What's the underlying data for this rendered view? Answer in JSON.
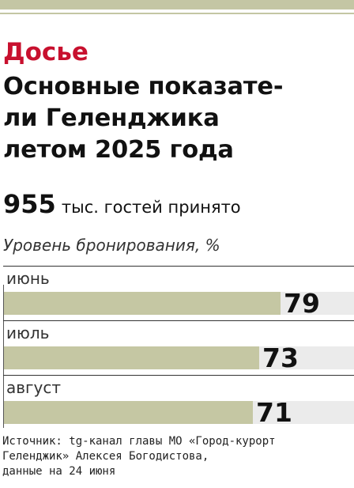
{
  "header": {
    "kicker": "Досье",
    "title_lines": [
      "Основные показате-",
      "ли Геленджика",
      "летом 2025 года"
    ]
  },
  "stat": {
    "value": "955",
    "text": "тыс. гостей принято"
  },
  "source_lines": [
    "Источник: tg-канал главы МО «Город-курорт",
    "Геленджик» Алексея Богодистова,",
    "данные на 24 июня"
  ],
  "colors": {
    "kicker": "#c8102e",
    "bar": "#c5c7a3",
    "track": "#ebebeb",
    "strip": "#c4c6a4"
  },
  "chart_data": {
    "type": "bar",
    "orientation": "horizontal",
    "title": "Уровень бронирования, %",
    "categories": [
      "июнь",
      "июль",
      "август"
    ],
    "values": [
      79,
      73,
      71
    ],
    "value_labels": [
      "79",
      "73",
      "71"
    ],
    "xlim": [
      0,
      100
    ]
  }
}
